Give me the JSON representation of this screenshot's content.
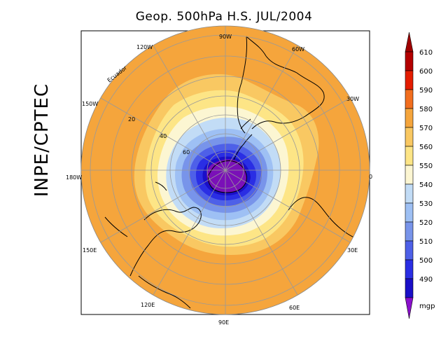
{
  "title": "Geop. 500hPa H.S. JUL/2004",
  "side_label": "INPE/CPTEC",
  "colorbar": {
    "unit": "mgp",
    "levels": [
      {
        "label": "610",
        "color": "#b40000"
      },
      {
        "label": "600",
        "color": "#e41c00"
      },
      {
        "label": "590",
        "color": "#f26e1e"
      },
      {
        "label": "580",
        "color": "#f5a53c"
      },
      {
        "label": "570",
        "color": "#f9c862"
      },
      {
        "label": "560",
        "color": "#fde586"
      },
      {
        "label": "550",
        "color": "#fcf6d2"
      },
      {
        "label": "540",
        "color": "#c2dcf6"
      },
      {
        "label": "530",
        "color": "#9ec0f4"
      },
      {
        "label": "520",
        "color": "#7894ea"
      },
      {
        "label": "510",
        "color": "#4e60e8"
      },
      {
        "label": "500",
        "color": "#2a2ee4"
      },
      {
        "label": "490",
        "color": "#1a0fc8"
      }
    ],
    "top_arrow_color": "#a00000",
    "bottom_arrow_color": "#8a10cc",
    "interior_color": "#7a10b8"
  },
  "longitude_labels": [
    "90W",
    "60W",
    "30W",
    "0",
    "30E",
    "60E",
    "90E",
    "120E",
    "150E",
    "180W",
    "150W",
    "120W"
  ],
  "latitude_labels": [
    "20",
    "40",
    "60"
  ],
  "equator_label": "Ecuador"
}
